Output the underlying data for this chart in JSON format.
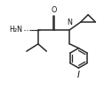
{
  "bg_color": "#ffffff",
  "line_color": "#2a2a2a",
  "text_color": "#111111",
  "lw": 1.1,
  "fs": 5.8,
  "xlim": [
    -0.5,
    9.5
  ],
  "ylim": [
    -0.5,
    8.0
  ]
}
